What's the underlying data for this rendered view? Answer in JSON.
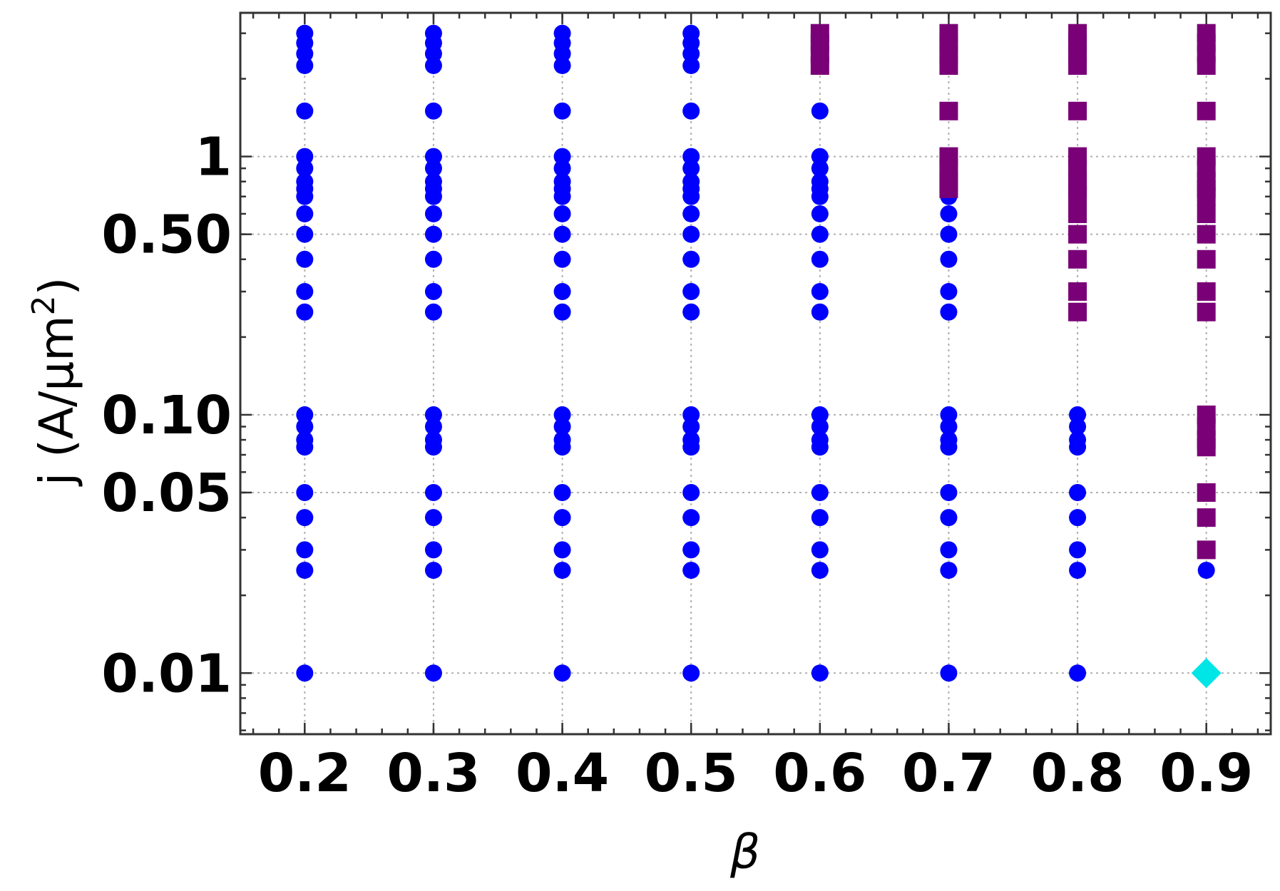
{
  "chart_data": {
    "type": "scatter",
    "xlabel": "β",
    "ylabel_main": "j (A/μm",
    "ylabel_sup": "2",
    "ylabel_close": ")",
    "xscale": "linear",
    "yscale": "log",
    "xlim": [
      0.15,
      0.95
    ],
    "ylim": [
      0.0058,
      3.6
    ],
    "x_ticks": [
      {
        "value": 0.2,
        "label": "0.2"
      },
      {
        "value": 0.3,
        "label": "0.3"
      },
      {
        "value": 0.4,
        "label": "0.4"
      },
      {
        "value": 0.5,
        "label": "0.5"
      },
      {
        "value": 0.6,
        "label": "0.6"
      },
      {
        "value": 0.7,
        "label": "0.7"
      },
      {
        "value": 0.8,
        "label": "0.8"
      },
      {
        "value": 0.9,
        "label": "0.9"
      }
    ],
    "y_ticks": [
      {
        "value": 0.01,
        "label": "0.01"
      },
      {
        "value": 0.05,
        "label": "0.05"
      },
      {
        "value": 0.1,
        "label": "0.10"
      },
      {
        "value": 0.5,
        "label": "0.50"
      },
      {
        "value": 1,
        "label": "1"
      }
    ],
    "grid": true,
    "legend": "none",
    "series": [
      {
        "marker": "circle",
        "color": "#0000ff",
        "points": [
          [
            0.2,
            3
          ],
          [
            0.2,
            2.75
          ],
          [
            0.2,
            2.5
          ],
          [
            0.2,
            2.25
          ],
          [
            0.2,
            1.5
          ],
          [
            0.2,
            1
          ],
          [
            0.2,
            0.9
          ],
          [
            0.2,
            0.8
          ],
          [
            0.2,
            0.75
          ],
          [
            0.2,
            0.7
          ],
          [
            0.2,
            0.6
          ],
          [
            0.2,
            0.5
          ],
          [
            0.2,
            0.4
          ],
          [
            0.2,
            0.3
          ],
          [
            0.2,
            0.25
          ],
          [
            0.2,
            0.1
          ],
          [
            0.2,
            0.09
          ],
          [
            0.2,
            0.08
          ],
          [
            0.2,
            0.075
          ],
          [
            0.2,
            0.05
          ],
          [
            0.2,
            0.04
          ],
          [
            0.2,
            0.03
          ],
          [
            0.2,
            0.025
          ],
          [
            0.2,
            0.01
          ],
          [
            0.3,
            3
          ],
          [
            0.3,
            2.75
          ],
          [
            0.3,
            2.5
          ],
          [
            0.3,
            2.25
          ],
          [
            0.3,
            1.5
          ],
          [
            0.3,
            1
          ],
          [
            0.3,
            0.9
          ],
          [
            0.3,
            0.8
          ],
          [
            0.3,
            0.75
          ],
          [
            0.3,
            0.7
          ],
          [
            0.3,
            0.6
          ],
          [
            0.3,
            0.5
          ],
          [
            0.3,
            0.4
          ],
          [
            0.3,
            0.3
          ],
          [
            0.3,
            0.25
          ],
          [
            0.3,
            0.1
          ],
          [
            0.3,
            0.09
          ],
          [
            0.3,
            0.08
          ],
          [
            0.3,
            0.075
          ],
          [
            0.3,
            0.05
          ],
          [
            0.3,
            0.04
          ],
          [
            0.3,
            0.03
          ],
          [
            0.3,
            0.025
          ],
          [
            0.3,
            0.01
          ],
          [
            0.4,
            3
          ],
          [
            0.4,
            2.75
          ],
          [
            0.4,
            2.5
          ],
          [
            0.4,
            2.25
          ],
          [
            0.4,
            1.5
          ],
          [
            0.4,
            1
          ],
          [
            0.4,
            0.9
          ],
          [
            0.4,
            0.8
          ],
          [
            0.4,
            0.75
          ],
          [
            0.4,
            0.7
          ],
          [
            0.4,
            0.6
          ],
          [
            0.4,
            0.5
          ],
          [
            0.4,
            0.4
          ],
          [
            0.4,
            0.3
          ],
          [
            0.4,
            0.25
          ],
          [
            0.4,
            0.1
          ],
          [
            0.4,
            0.09
          ],
          [
            0.4,
            0.08
          ],
          [
            0.4,
            0.075
          ],
          [
            0.4,
            0.05
          ],
          [
            0.4,
            0.04
          ],
          [
            0.4,
            0.03
          ],
          [
            0.4,
            0.025
          ],
          [
            0.4,
            0.01
          ],
          [
            0.5,
            3
          ],
          [
            0.5,
            2.75
          ],
          [
            0.5,
            2.5
          ],
          [
            0.5,
            2.25
          ],
          [
            0.5,
            1.5
          ],
          [
            0.5,
            1
          ],
          [
            0.5,
            0.9
          ],
          [
            0.5,
            0.8
          ],
          [
            0.5,
            0.75
          ],
          [
            0.5,
            0.7
          ],
          [
            0.5,
            0.6
          ],
          [
            0.5,
            0.5
          ],
          [
            0.5,
            0.4
          ],
          [
            0.5,
            0.3
          ],
          [
            0.5,
            0.25
          ],
          [
            0.5,
            0.1
          ],
          [
            0.5,
            0.09
          ],
          [
            0.5,
            0.08
          ],
          [
            0.5,
            0.075
          ],
          [
            0.5,
            0.05
          ],
          [
            0.5,
            0.04
          ],
          [
            0.5,
            0.03
          ],
          [
            0.5,
            0.025
          ],
          [
            0.5,
            0.01
          ],
          [
            0.6,
            1.5
          ],
          [
            0.6,
            1
          ],
          [
            0.6,
            0.9
          ],
          [
            0.6,
            0.8
          ],
          [
            0.6,
            0.75
          ],
          [
            0.6,
            0.7
          ],
          [
            0.6,
            0.6
          ],
          [
            0.6,
            0.5
          ],
          [
            0.6,
            0.4
          ],
          [
            0.6,
            0.3
          ],
          [
            0.6,
            0.25
          ],
          [
            0.6,
            0.1
          ],
          [
            0.6,
            0.09
          ],
          [
            0.6,
            0.08
          ],
          [
            0.6,
            0.075
          ],
          [
            0.6,
            0.05
          ],
          [
            0.6,
            0.04
          ],
          [
            0.6,
            0.03
          ],
          [
            0.6,
            0.025
          ],
          [
            0.6,
            0.01
          ],
          [
            0.7,
            0.7
          ],
          [
            0.7,
            0.6
          ],
          [
            0.7,
            0.5
          ],
          [
            0.7,
            0.4
          ],
          [
            0.7,
            0.3
          ],
          [
            0.7,
            0.25
          ],
          [
            0.7,
            0.1
          ],
          [
            0.7,
            0.09
          ],
          [
            0.7,
            0.08
          ],
          [
            0.7,
            0.075
          ],
          [
            0.7,
            0.05
          ],
          [
            0.7,
            0.04
          ],
          [
            0.7,
            0.03
          ],
          [
            0.7,
            0.025
          ],
          [
            0.7,
            0.01
          ],
          [
            0.8,
            0.1
          ],
          [
            0.8,
            0.09
          ],
          [
            0.8,
            0.08
          ],
          [
            0.8,
            0.075
          ],
          [
            0.8,
            0.05
          ],
          [
            0.8,
            0.04
          ],
          [
            0.8,
            0.03
          ],
          [
            0.8,
            0.025
          ],
          [
            0.8,
            0.01
          ],
          [
            0.9,
            0.025
          ]
        ]
      },
      {
        "marker": "square",
        "color": "#7a0077",
        "points": [
          [
            0.6,
            3
          ],
          [
            0.6,
            2.75
          ],
          [
            0.6,
            2.5
          ],
          [
            0.6,
            2.25
          ],
          [
            0.7,
            3
          ],
          [
            0.7,
            2.75
          ],
          [
            0.7,
            2.5
          ],
          [
            0.7,
            2.25
          ],
          [
            0.7,
            1.5
          ],
          [
            0.7,
            1
          ],
          [
            0.7,
            0.9
          ],
          [
            0.7,
            0.8
          ],
          [
            0.7,
            0.75
          ],
          [
            0.8,
            3
          ],
          [
            0.8,
            2.75
          ],
          [
            0.8,
            2.5
          ],
          [
            0.8,
            2.25
          ],
          [
            0.8,
            1.5
          ],
          [
            0.8,
            1
          ],
          [
            0.8,
            0.9
          ],
          [
            0.8,
            0.8
          ],
          [
            0.8,
            0.75
          ],
          [
            0.8,
            0.7
          ],
          [
            0.8,
            0.6
          ],
          [
            0.8,
            0.5
          ],
          [
            0.8,
            0.4
          ],
          [
            0.8,
            0.3
          ],
          [
            0.8,
            0.25
          ],
          [
            0.9,
            3
          ],
          [
            0.9,
            2.75
          ],
          [
            0.9,
            2.5
          ],
          [
            0.9,
            2.25
          ],
          [
            0.9,
            1.5
          ],
          [
            0.9,
            1
          ],
          [
            0.9,
            0.9
          ],
          [
            0.9,
            0.8
          ],
          [
            0.9,
            0.75
          ],
          [
            0.9,
            0.7
          ],
          [
            0.9,
            0.6
          ],
          [
            0.9,
            0.5
          ],
          [
            0.9,
            0.4
          ],
          [
            0.9,
            0.3
          ],
          [
            0.9,
            0.25
          ],
          [
            0.9,
            0.1
          ],
          [
            0.9,
            0.09
          ],
          [
            0.9,
            0.08
          ],
          [
            0.9,
            0.075
          ],
          [
            0.9,
            0.05
          ],
          [
            0.9,
            0.04
          ],
          [
            0.9,
            0.03
          ]
        ]
      },
      {
        "marker": "diamond",
        "color": "#00e5e5",
        "points": [
          [
            0.9,
            0.01
          ]
        ]
      }
    ]
  }
}
